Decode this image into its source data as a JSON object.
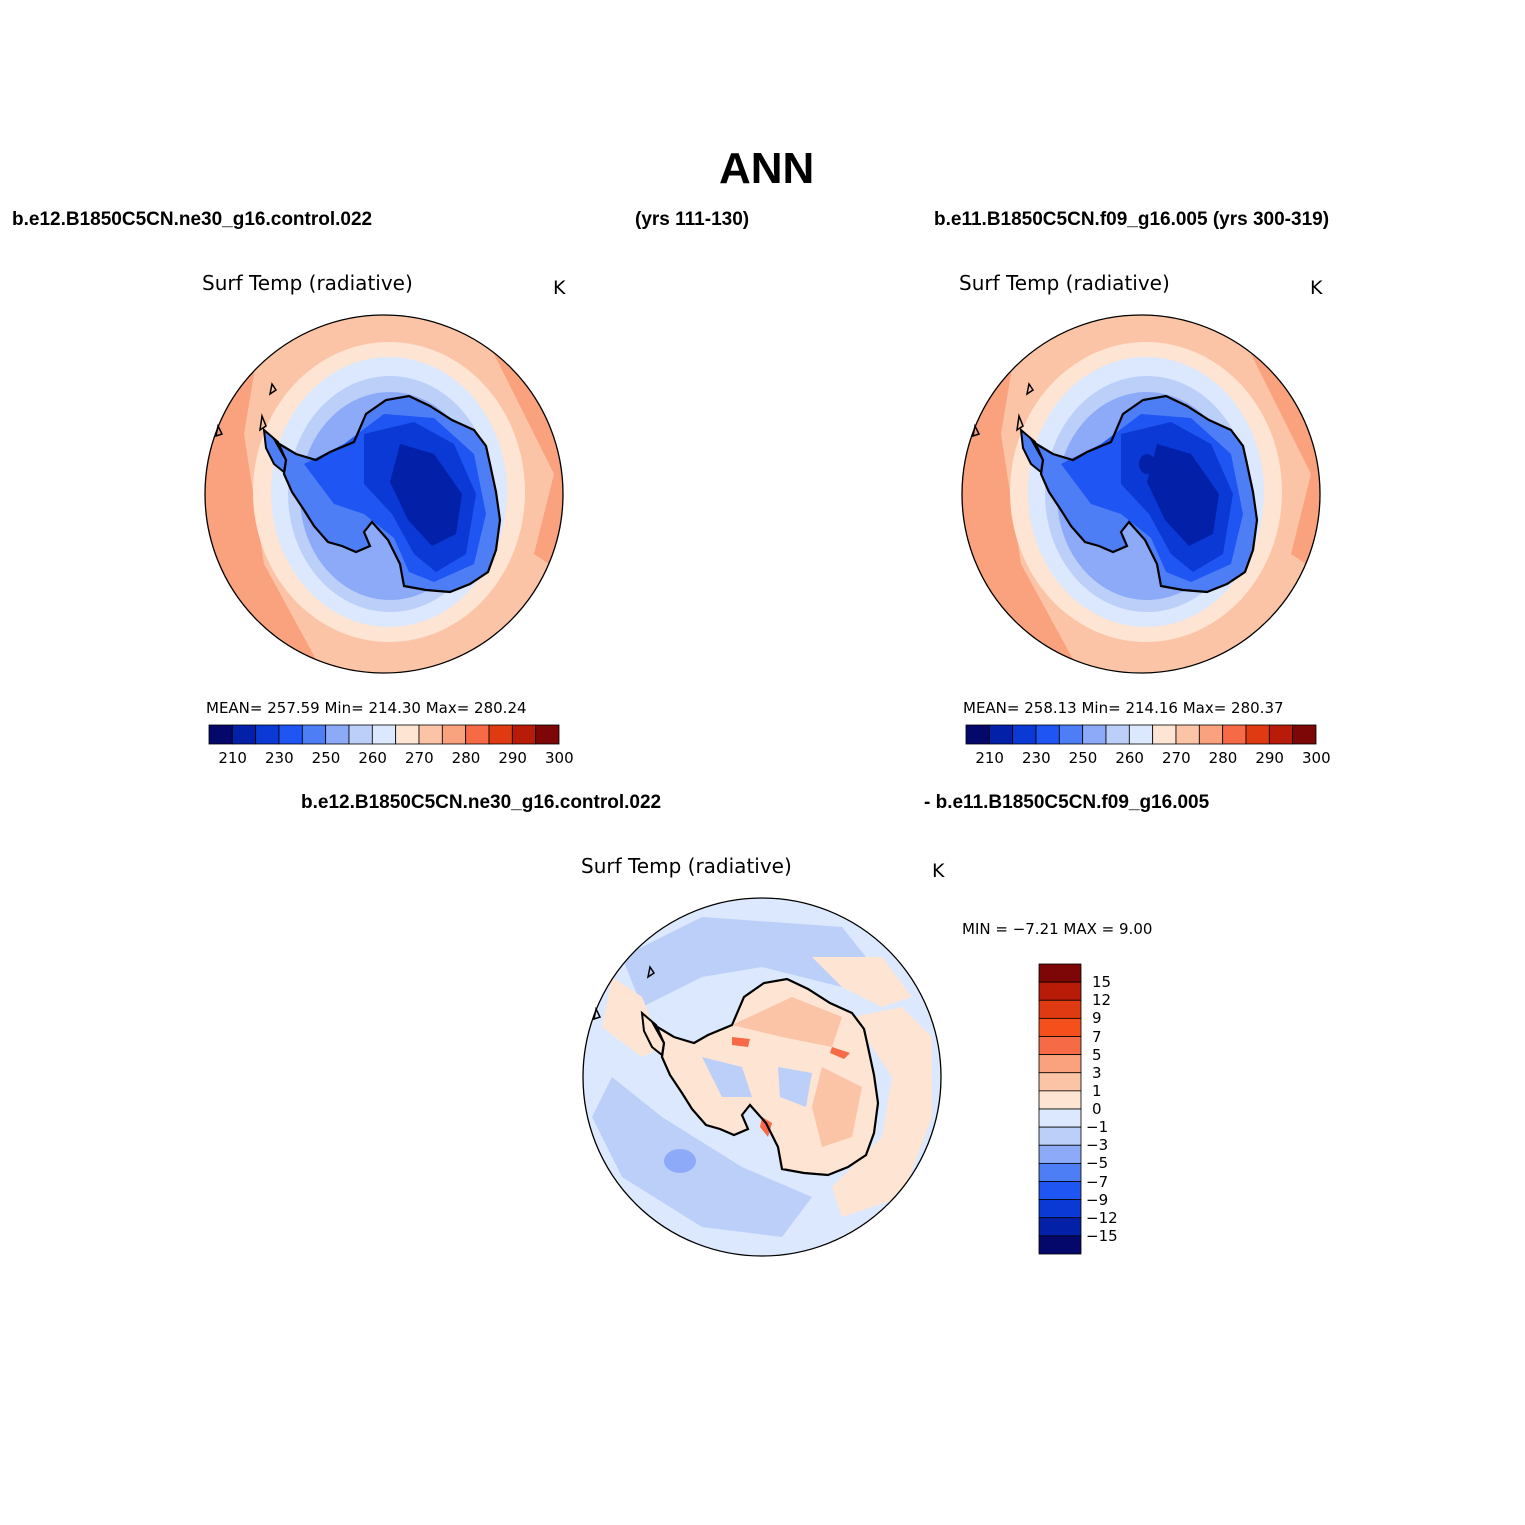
{
  "main_title": "ANN",
  "header": {
    "case1": "b.e12.B1850C5CN.ne30_g16.control.022",
    "case1_years": "(yrs 111-130)",
    "case2": "b.e11.B1850C5CN.f09_g16.005 (yrs 300-319)",
    "diff_case1": "b.e12.B1850C5CN.ne30_g16.control.022",
    "diff_case2": "- b.e11.B1850C5CN.f09_g16.005"
  },
  "panels": [
    {
      "variable": "Surf Temp (radiative)",
      "units": "K",
      "stats": "MEAN=  257.59   Min=  214.30   Max=  280.24"
    },
    {
      "variable": "Surf Temp (radiative)",
      "units": "K",
      "stats": "MEAN=  258.13   Min=  214.16   Max=  280.37"
    }
  ],
  "diff_panel": {
    "variable": "Surf Temp (radiative)",
    "units": "K",
    "stats": "MIN =   −7.21  MAX =    9.00"
  },
  "colorbar": {
    "ticks": [
      "210",
      "230",
      "250",
      "260",
      "270",
      "280",
      "290",
      "300"
    ],
    "colors": [
      "#05086b",
      "#0320a8",
      "#0a39d6",
      "#1f55f2",
      "#4e7ef5",
      "#8caaf7",
      "#bccff9",
      "#dbe8fd",
      "#fde4d3",
      "#fbc4a6",
      "#f9a27d",
      "#f66a45",
      "#e03a12",
      "#b81c08",
      "#7d0606"
    ]
  },
  "diff_colorbar": {
    "labels": [
      "15",
      "12",
      "9",
      "7",
      "5",
      "3",
      "1",
      "0",
      "−1",
      "−3",
      "−5",
      "−7",
      "−9",
      "−12",
      "−15"
    ],
    "colors": [
      "#7d0606",
      "#b81c08",
      "#e03a12",
      "#f5501c",
      "#f66a45",
      "#f9a27d",
      "#fbc4a6",
      "#fde4d3",
      "#dbe8fd",
      "#bccff9",
      "#8caaf7",
      "#4e7ef5",
      "#1f55f2",
      "#0a39d6",
      "#0320a8",
      "#05086b"
    ]
  },
  "map_colors": {
    "ocean_warm_far": "#f9a27d",
    "ocean_warm": "#fbc4a6",
    "ocean_mild": "#fde4d3",
    "ice_edge": "#dbe8fd",
    "sea_ice": "#bccff9",
    "sea_ice_cold": "#8caaf7",
    "coast": "#4e7ef5",
    "ice_sheet": "#1f55f2",
    "plateau": "#0a39d6",
    "dome": "#0320a8",
    "diff_ocean": "#bccff9",
    "diff_near": "#dbe8fd",
    "diff_land": "#fde4d3",
    "diff_land_warm": "#fbc4a6",
    "diff_hot": "#f66a45",
    "diff_cold": "#8caaf7"
  }
}
